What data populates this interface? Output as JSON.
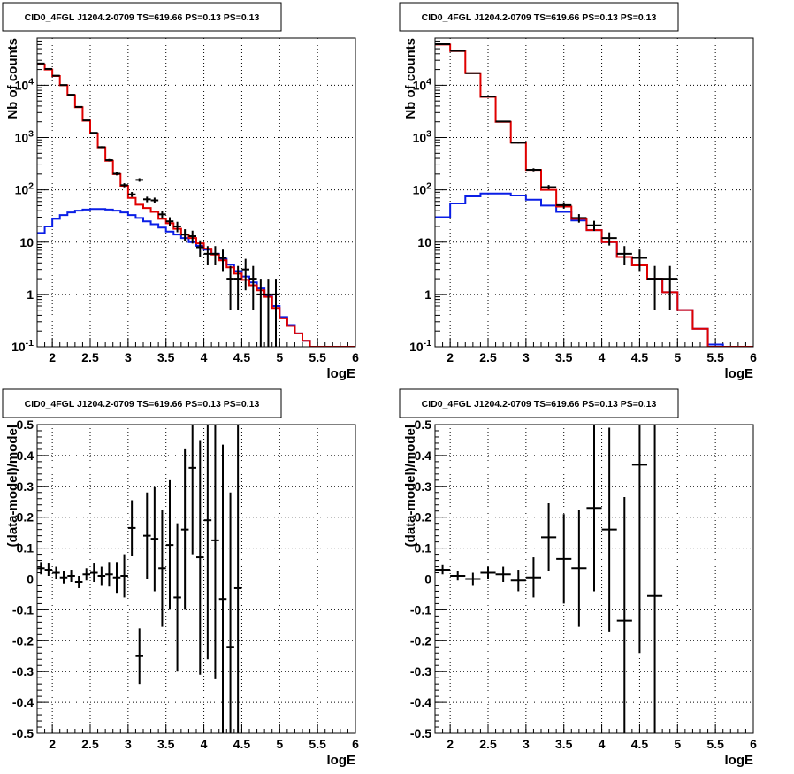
{
  "colors": {
    "data": "#000000",
    "total_model": "#e00000",
    "source_model": "#0a1ee6",
    "grid": "#000000",
    "title_box_border": "#000000"
  },
  "chart_data": [
    {
      "type": "line",
      "panel": "top-left",
      "title": "CID0_4FGL J1204.2-0709 TS=619.66 PS=0.13 PS=0.13",
      "xlabel": "logE",
      "ylabel": "Nb of counts",
      "xlim": [
        1.8,
        6.0
      ],
      "ylim": [
        0.1,
        80000
      ],
      "yscale": "log",
      "grid": true,
      "x_ticks": [
        2,
        2.5,
        3,
        3.5,
        4,
        4.5,
        5,
        5.5,
        6
      ],
      "x_tick_labels": [
        "2",
        "2.5",
        "3",
        "3.5",
        "4",
        "4.5",
        "5",
        "5.5",
        "6"
      ],
      "y_ticks": [
        0.1,
        1,
        10,
        100,
        1000,
        10000
      ],
      "y_tick_labels": [
        "10^-1",
        "1",
        "10",
        "10^2",
        "10^3",
        "10^4"
      ],
      "bin_edges": [
        1.8,
        1.9,
        2.0,
        2.1,
        2.2,
        2.3,
        2.4,
        2.5,
        2.6,
        2.7,
        2.8,
        2.9,
        3.0,
        3.1,
        3.2,
        3.3,
        3.4,
        3.5,
        3.6,
        3.7,
        3.8,
        3.9,
        4.0,
        4.1,
        4.2,
        4.3,
        4.4,
        4.5,
        4.6,
        4.7,
        4.8,
        4.9,
        5.0,
        5.1,
        5.2,
        5.3,
        5.4,
        5.5,
        5.6,
        5.7,
        5.8,
        5.9,
        6.0
      ],
      "series": [
        {
          "role": "total_model",
          "values": [
            25000,
            20000,
            15000,
            10000,
            6500,
            3800,
            2100,
            1200,
            650,
            360,
            200,
            120,
            70,
            52,
            45,
            38,
            28,
            23,
            18,
            14,
            12,
            9.5,
            7.5,
            5.8,
            4.5,
            3.3,
            2.5,
            1.9,
            1.5,
            1.2,
            0.9,
            0.55,
            0.35,
            0.25,
            0.18,
            0.13,
            0.1,
            0.1,
            0.1,
            0.1,
            0.1,
            0.1
          ]
        },
        {
          "role": "source_model",
          "values": [
            15,
            20,
            28,
            33,
            37,
            40,
            42,
            43,
            43,
            42,
            40,
            37,
            33,
            29,
            25,
            22,
            19,
            16,
            14,
            12,
            10,
            8.5,
            7.2,
            6.0,
            4.8,
            3.7,
            2.8,
            2.2,
            1.7,
            1.3,
            0.95,
            0.6,
            0.37,
            0.26,
            0.18,
            0.13,
            0.1,
            0.1,
            0.1,
            0.1,
            0.1,
            0.1
          ]
        }
      ],
      "data_points": [
        {
          "x": 1.85,
          "y": 26000,
          "yerr": [
            160,
            160
          ]
        },
        {
          "x": 1.95,
          "y": 20500,
          "yerr": [
            140,
            140
          ]
        },
        {
          "x": 2.05,
          "y": 15200,
          "yerr": [
            120,
            120
          ]
        },
        {
          "x": 2.15,
          "y": 10100,
          "yerr": [
            100,
            100
          ]
        },
        {
          "x": 2.25,
          "y": 6600,
          "yerr": [
            80,
            80
          ]
        },
        {
          "x": 2.35,
          "y": 3850,
          "yerr": [
            62,
            62
          ]
        },
        {
          "x": 2.45,
          "y": 2130,
          "yerr": [
            46,
            46
          ]
        },
        {
          "x": 2.55,
          "y": 1230,
          "yerr": [
            35,
            35
          ]
        },
        {
          "x": 2.65,
          "y": 655,
          "yerr": [
            26,
            26
          ]
        },
        {
          "x": 2.75,
          "y": 370,
          "yerr": [
            19,
            19
          ]
        },
        {
          "x": 2.85,
          "y": 203,
          "yerr": [
            14,
            14
          ]
        },
        {
          "x": 2.95,
          "y": 123,
          "yerr": [
            11,
            11
          ]
        },
        {
          "x": 3.05,
          "y": 82,
          "yerr": [
            9,
            9
          ]
        },
        {
          "x": 3.15,
          "y": 155,
          "yerr": [
            12,
            12
          ]
        },
        {
          "x": 3.25,
          "y": 66,
          "yerr": [
            8,
            8
          ]
        },
        {
          "x": 3.35,
          "y": 63,
          "yerr": [
            8,
            8
          ]
        },
        {
          "x": 3.45,
          "y": 34,
          "yerr": [
            6,
            6
          ]
        },
        {
          "x": 3.55,
          "y": 25,
          "yerr": [
            5,
            5
          ]
        },
        {
          "x": 3.65,
          "y": 20,
          "yerr": [
            4.5,
            4.5
          ]
        },
        {
          "x": 3.75,
          "y": 14,
          "yerr": [
            3.7,
            3.7
          ]
        },
        {
          "x": 3.85,
          "y": 13,
          "yerr": [
            3.6,
            3.6
          ]
        },
        {
          "x": 3.95,
          "y": 8,
          "yerr": [
            2.8,
            2.8
          ]
        },
        {
          "x": 4.05,
          "y": 6,
          "yerr": [
            2.4,
            2.4
          ]
        },
        {
          "x": 4.15,
          "y": 6,
          "yerr": [
            2.4,
            2.4
          ]
        },
        {
          "x": 4.25,
          "y": 5,
          "yerr": [
            2.2,
            2.2
          ]
        },
        {
          "x": 4.35,
          "y": 2,
          "yerr": [
            1.5,
            1.5
          ]
        },
        {
          "x": 4.45,
          "y": 2,
          "yerr": [
            1.5,
            1.5
          ]
        },
        {
          "x": 4.55,
          "y": 3,
          "yerr": [
            1.8,
            1.8
          ]
        },
        {
          "x": 4.65,
          "y": 2,
          "yerr": [
            1.5,
            1.5
          ]
        },
        {
          "x": 4.75,
          "y": 1,
          "yerr": [
            0.9,
            1.0
          ]
        },
        {
          "x": 4.85,
          "y": 1,
          "yerr": [
            0.9,
            1.0
          ]
        },
        {
          "x": 4.95,
          "y": 1,
          "yerr": [
            0.9,
            1.0
          ]
        }
      ]
    },
    {
      "type": "line",
      "panel": "top-right",
      "title": "CID0_4FGL J1204.2-0709 TS=619.66 PS=0.13 PS=0.13",
      "xlabel": "logE",
      "ylabel": "Nb of counts",
      "xlim": [
        1.8,
        6.0
      ],
      "ylim": [
        0.1,
        80000
      ],
      "yscale": "log",
      "grid": true,
      "x_ticks": [
        2,
        2.5,
        3,
        3.5,
        4,
        4.5,
        5,
        5.5,
        6
      ],
      "x_tick_labels": [
        "2",
        "2.5",
        "3",
        "3.5",
        "4",
        "4.5",
        "5",
        "5.5",
        "6"
      ],
      "y_ticks": [
        0.1,
        1,
        10,
        100,
        1000,
        10000
      ],
      "y_tick_labels": [
        "10^-1",
        "1",
        "10",
        "10^2",
        "10^3",
        "10^4"
      ],
      "bin_edges": [
        1.8,
        2.0,
        2.2,
        2.4,
        2.6,
        2.8,
        3.0,
        3.2,
        3.4,
        3.6,
        3.8,
        4.0,
        4.2,
        4.4,
        4.6,
        4.8,
        5.0,
        5.2,
        5.4,
        5.6,
        5.8,
        6.0
      ],
      "series": [
        {
          "role": "total_model",
          "values": [
            60000,
            45000,
            17000,
            6000,
            2000,
            800,
            240,
            100,
            48,
            28,
            17,
            10,
            5.2,
            3.6,
            2.0,
            1.1,
            0.5,
            0.22,
            0.1,
            0.1,
            0.1
          ]
        },
        {
          "role": "source_model",
          "values": [
            30,
            55,
            75,
            85,
            85,
            78,
            65,
            50,
            38,
            26,
            17,
            10,
            5.2,
            3.6,
            2.0,
            1.1,
            0.5,
            0.22,
            0.11,
            0.1,
            0.1
          ]
        }
      ],
      "data_points": [
        {
          "x": 1.9,
          "y": 61000,
          "yerr": [
            250,
            250
          ]
        },
        {
          "x": 2.1,
          "y": 45500,
          "yerr": [
            210,
            210
          ]
        },
        {
          "x": 2.3,
          "y": 17000,
          "yerr": [
            130,
            130
          ]
        },
        {
          "x": 2.5,
          "y": 6100,
          "yerr": [
            78,
            78
          ]
        },
        {
          "x": 2.7,
          "y": 2030,
          "yerr": [
            45,
            45
          ]
        },
        {
          "x": 2.9,
          "y": 795,
          "yerr": [
            28,
            28
          ]
        },
        {
          "x": 3.1,
          "y": 242,
          "yerr": [
            16,
            16
          ]
        },
        {
          "x": 3.3,
          "y": 113,
          "yerr": [
            11,
            11
          ]
        },
        {
          "x": 3.5,
          "y": 51,
          "yerr": [
            7,
            7
          ]
        },
        {
          "x": 3.7,
          "y": 29,
          "yerr": [
            5.4,
            5.4
          ]
        },
        {
          "x": 3.9,
          "y": 21,
          "yerr": [
            4.6,
            4.6
          ]
        },
        {
          "x": 4.1,
          "y": 12,
          "yerr": [
            3.4,
            3.4
          ]
        },
        {
          "x": 4.3,
          "y": 6,
          "yerr": [
            2.4,
            2.4
          ]
        },
        {
          "x": 4.5,
          "y": 5,
          "yerr": [
            2.2,
            2.2
          ]
        },
        {
          "x": 4.7,
          "y": 2,
          "yerr": [
            1.5,
            1.5
          ]
        },
        {
          "x": 4.9,
          "y": 2,
          "yerr": [
            1.5,
            1.5
          ]
        }
      ]
    },
    {
      "type": "scatter",
      "panel": "bottom-left",
      "title": "CID0_4FGL J1204.2-0709 TS=619.66 PS=0.13 PS=0.13",
      "xlabel": "logE",
      "ylabel": "(data-model)/model",
      "xlim": [
        1.8,
        6.0
      ],
      "ylim": [
        -0.5,
        0.5
      ],
      "grid": true,
      "x_ticks": [
        2,
        2.5,
        3,
        3.5,
        4,
        4.5,
        5,
        5.5,
        6
      ],
      "x_tick_labels": [
        "2",
        "2.5",
        "3",
        "3.5",
        "4",
        "4.5",
        "5",
        "5.5",
        "6"
      ],
      "y_ticks": [
        -0.5,
        -0.4,
        -0.3,
        -0.2,
        -0.1,
        0,
        0.1,
        0.2,
        0.3,
        0.4,
        0.5
      ],
      "y_tick_labels": [
        "-0.5",
        "-0.4",
        "-0.3",
        "-0.2",
        "-0.1",
        "0",
        "0.1",
        "0.2",
        "0.3",
        "0.4",
        "0.5"
      ],
      "points": [
        {
          "x": 1.85,
          "y": 0.035,
          "yerr": [
            0.02,
            0.02
          ]
        },
        {
          "x": 1.95,
          "y": 0.03,
          "yerr": [
            0.02,
            0.02
          ]
        },
        {
          "x": 2.05,
          "y": 0.02,
          "yerr": [
            0.02,
            0.02
          ]
        },
        {
          "x": 2.15,
          "y": 0.005,
          "yerr": [
            0.02,
            0.02
          ]
        },
        {
          "x": 2.25,
          "y": 0.01,
          "yerr": [
            0.02,
            0.02
          ]
        },
        {
          "x": 2.35,
          "y": -0.01,
          "yerr": [
            0.02,
            0.02
          ]
        },
        {
          "x": 2.45,
          "y": 0.015,
          "yerr": [
            0.02,
            0.02
          ]
        },
        {
          "x": 2.55,
          "y": 0.02,
          "yerr": [
            0.03,
            0.03
          ]
        },
        {
          "x": 2.65,
          "y": 0.01,
          "yerr": [
            0.03,
            0.03
          ]
        },
        {
          "x": 2.75,
          "y": 0.015,
          "yerr": [
            0.04,
            0.04
          ]
        },
        {
          "x": 2.85,
          "y": 0.005,
          "yerr": [
            0.05,
            0.05
          ]
        },
        {
          "x": 2.95,
          "y": 0.01,
          "yerr": [
            0.07,
            0.07
          ]
        },
        {
          "x": 3.05,
          "y": 0.165,
          "yerr": [
            0.09,
            0.09
          ]
        },
        {
          "x": 3.15,
          "y": -0.25,
          "yerr": [
            0.09,
            0.09
          ]
        },
        {
          "x": 3.25,
          "y": 0.14,
          "yerr": [
            0.14,
            0.14
          ]
        },
        {
          "x": 3.35,
          "y": 0.13,
          "yerr": [
            0.17,
            0.17
          ]
        },
        {
          "x": 3.45,
          "y": 0.035,
          "yerr": [
            0.19,
            0.19
          ]
        },
        {
          "x": 3.55,
          "y": 0.11,
          "yerr": [
            0.21,
            0.21
          ]
        },
        {
          "x": 3.65,
          "y": -0.06,
          "yerr": [
            0.24,
            0.24
          ]
        },
        {
          "x": 3.75,
          "y": 0.16,
          "yerr": [
            0.26,
            0.26
          ]
        },
        {
          "x": 3.85,
          "y": 0.36,
          "yerr": [
            0.28,
            0.28
          ]
        },
        {
          "x": 3.95,
          "y": 0.07,
          "yerr": [
            0.38,
            0.38
          ]
        },
        {
          "x": 4.05,
          "y": 0.19,
          "yerr": [
            0.45,
            0.45
          ]
        },
        {
          "x": 4.15,
          "y": 0.125,
          "yerr": [
            0.45,
            0.45
          ]
        },
        {
          "x": 4.25,
          "y": -0.065,
          "yerr": [
            0.5,
            0.5
          ]
        },
        {
          "x": 4.35,
          "y": -0.22,
          "yerr": [
            0.5,
            0.5
          ]
        },
        {
          "x": 4.45,
          "y": -0.03,
          "yerr": [
            0.6,
            0.6
          ]
        }
      ]
    },
    {
      "type": "scatter",
      "panel": "bottom-right",
      "title": "CID0_4FGL J1204.2-0709 TS=619.66 PS=0.13 PS=0.13",
      "xlabel": "logE",
      "ylabel": "(data-model)/model",
      "xlim": [
        1.8,
        6.0
      ],
      "ylim": [
        -0.5,
        0.5
      ],
      "grid": true,
      "x_ticks": [
        2,
        2.5,
        3,
        3.5,
        4,
        4.5,
        5,
        5.5,
        6
      ],
      "x_tick_labels": [
        "2",
        "2.5",
        "3",
        "3.5",
        "4",
        "4.5",
        "5",
        "5.5",
        "6"
      ],
      "y_ticks": [
        -0.5,
        -0.4,
        -0.3,
        -0.2,
        -0.1,
        0,
        0.1,
        0.2,
        0.3,
        0.4,
        0.5
      ],
      "y_tick_labels": [
        "-0.5",
        "-0.4",
        "-0.3",
        "-0.2",
        "-0.1",
        "0",
        "0.1",
        "0.2",
        "0.3",
        "0.4",
        "0.5"
      ],
      "points": [
        {
          "x": 1.9,
          "y": 0.03,
          "yerr": [
            0.015,
            0.015
          ]
        },
        {
          "x": 2.1,
          "y": 0.01,
          "yerr": [
            0.015,
            0.015
          ]
        },
        {
          "x": 2.3,
          "y": 0.0,
          "yerr": [
            0.02,
            0.02
          ]
        },
        {
          "x": 2.5,
          "y": 0.02,
          "yerr": [
            0.02,
            0.02
          ]
        },
        {
          "x": 2.7,
          "y": 0.015,
          "yerr": [
            0.025,
            0.025
          ]
        },
        {
          "x": 2.9,
          "y": -0.005,
          "yerr": [
            0.035,
            0.035
          ]
        },
        {
          "x": 3.1,
          "y": 0.005,
          "yerr": [
            0.065,
            0.065
          ]
        },
        {
          "x": 3.3,
          "y": 0.135,
          "yerr": [
            0.11,
            0.11
          ]
        },
        {
          "x": 3.5,
          "y": 0.065,
          "yerr": [
            0.145,
            0.145
          ]
        },
        {
          "x": 3.7,
          "y": 0.035,
          "yerr": [
            0.19,
            0.19
          ]
        },
        {
          "x": 3.9,
          "y": 0.23,
          "yerr": [
            0.27,
            0.27
          ]
        },
        {
          "x": 4.1,
          "y": 0.16,
          "yerr": [
            0.33,
            0.33
          ]
        },
        {
          "x": 4.3,
          "y": -0.135,
          "yerr": [
            0.4,
            0.4
          ]
        },
        {
          "x": 4.5,
          "y": 0.37,
          "yerr": [
            0.61,
            0.61
          ]
        },
        {
          "x": 4.7,
          "y": -0.055,
          "yerr": [
            0.75,
            0.75
          ]
        }
      ]
    }
  ]
}
